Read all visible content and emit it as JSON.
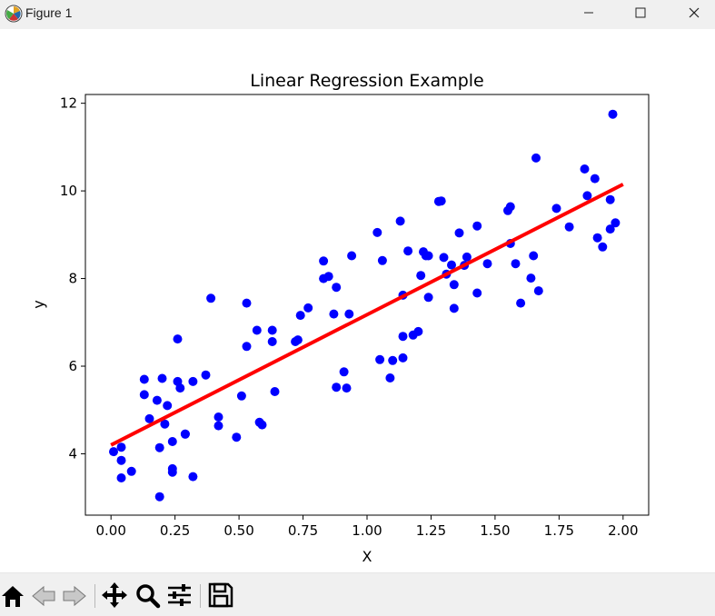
{
  "window": {
    "title": "Figure 1",
    "icons": [
      "matplotlib-icon",
      "minimize-icon",
      "maximize-icon",
      "close-icon"
    ]
  },
  "toolbar": {
    "buttons": [
      "home-icon",
      "back-icon",
      "forward-icon",
      "pan-icon",
      "zoom-icon",
      "configure-subplots-icon",
      "save-icon"
    ]
  },
  "colors": {
    "points": "#0000ff",
    "fit_line": "#ff0000",
    "axes": "#000000",
    "titlebar": "#f0f0f0",
    "toolbar": "#f0f0f0"
  },
  "chart_data": {
    "type": "scatter",
    "title": "Linear Regression Example",
    "xlabel": "X",
    "ylabel": "y",
    "xlim": [
      -0.1,
      2.1
    ],
    "ylim": [
      2.6,
      12.2
    ],
    "xticks": [
      "0.00",
      "0.25",
      "0.50",
      "0.75",
      "1.00",
      "1.25",
      "1.50",
      "1.75",
      "2.00"
    ],
    "yticks": [
      "4",
      "6",
      "8",
      "10",
      "12"
    ],
    "grid": false,
    "legend": "none",
    "series": [
      {
        "kind": "scatter",
        "x": [
          0.01,
          0.04,
          0.04,
          0.04,
          0.08,
          0.13,
          0.13,
          0.15,
          0.18,
          0.19,
          0.19,
          0.2,
          0.21,
          0.22,
          0.24,
          0.24,
          0.24,
          0.26,
          0.26,
          0.27,
          0.29,
          0.29,
          0.32,
          0.32,
          0.37,
          0.39,
          0.42,
          0.42,
          0.49,
          0.51,
          0.53,
          0.53,
          0.57,
          0.58,
          0.59,
          0.63,
          0.63,
          0.64,
          0.72,
          0.73,
          0.74,
          0.77,
          0.83,
          0.83,
          0.85,
          0.87,
          0.88,
          0.88,
          0.91,
          0.92,
          0.93,
          0.94,
          1.04,
          1.05,
          1.06,
          1.09,
          1.1,
          1.13,
          1.14,
          1.14,
          1.14,
          1.16,
          1.18,
          1.2,
          1.21,
          1.22,
          1.23,
          1.24,
          1.24,
          1.28,
          1.29,
          1.3,
          1.31,
          1.33,
          1.34,
          1.34,
          1.36,
          1.38,
          1.39,
          1.43,
          1.43,
          1.47,
          1.55,
          1.56,
          1.56,
          1.58,
          1.6,
          1.64,
          1.65,
          1.66,
          1.67,
          1.74,
          1.79,
          1.85,
          1.86,
          1.89,
          1.9,
          1.92,
          1.95,
          1.95,
          1.96,
          1.97
        ],
        "y": [
          4.05,
          3.85,
          4.15,
          3.45,
          3.6,
          5.7,
          5.35,
          4.8,
          5.22,
          4.14,
          3.02,
          5.72,
          4.68,
          5.1,
          4.28,
          3.58,
          3.66,
          6.62,
          5.65,
          5.5,
          4.45,
          4.45,
          5.65,
          3.48,
          5.8,
          7.55,
          4.64,
          4.84,
          4.38,
          5.32,
          7.44,
          6.45,
          6.82,
          4.72,
          4.66,
          6.82,
          6.56,
          5.42,
          6.56,
          6.6,
          7.16,
          7.33,
          8.4,
          8.0,
          8.05,
          7.19,
          7.8,
          5.52,
          5.87,
          5.5,
          7.19,
          8.52,
          9.05,
          6.15,
          8.41,
          5.73,
          6.13,
          9.31,
          7.62,
          6.68,
          6.19,
          8.63,
          6.71,
          6.79,
          8.07,
          8.61,
          8.52,
          7.57,
          8.52,
          9.76,
          9.77,
          8.48,
          8.1,
          8.31,
          7.86,
          7.32,
          9.04,
          8.3,
          8.49,
          9.2,
          7.67,
          8.34,
          9.55,
          9.64,
          8.8,
          8.34,
          7.44,
          8.01,
          8.52,
          10.75,
          7.72,
          9.6,
          9.18,
          10.5,
          9.89,
          10.28,
          8.93,
          8.72,
          9.8,
          9.13,
          11.75,
          9.27
        ]
      },
      {
        "kind": "line",
        "x": [
          0.0,
          2.0
        ],
        "y": [
          4.2,
          10.15
        ]
      }
    ]
  }
}
